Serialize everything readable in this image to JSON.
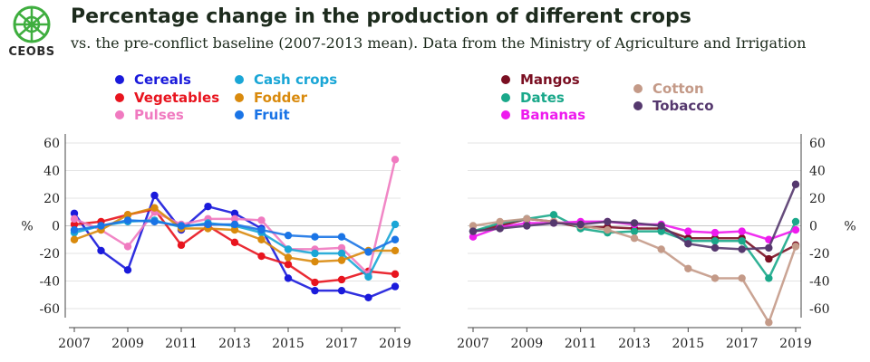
{
  "header": {
    "logo_text": "CEOBS",
    "title": "Percentage change in the production of different crops",
    "subtitle": "vs. the pre-conflict baseline (2007-2013 mean). Data from the Ministry of Agriculture and Irrigation"
  },
  "chart_data": [
    {
      "type": "line",
      "ylabel": "%",
      "ylim": [
        -70,
        70
      ],
      "yticks": [
        60,
        40,
        20,
        0,
        -20,
        -40,
        -60
      ],
      "xlim": [
        2007,
        2019
      ],
      "xticks": [
        2007,
        2009,
        2011,
        2013,
        2015,
        2017,
        2019
      ],
      "x": [
        2007,
        2008,
        2009,
        2010,
        2011,
        2012,
        2013,
        2014,
        2015,
        2016,
        2017,
        2018,
        2019
      ],
      "grid": "horizontal",
      "legend": "top",
      "series": [
        {
          "name": "Cereals",
          "color": "#1a1adb",
          "values": [
            9,
            -18,
            -32,
            22,
            -3,
            14,
            9,
            -2,
            -38,
            -47,
            -47,
            -52,
            -44
          ]
        },
        {
          "name": "Vegetables",
          "color": "#e8141e",
          "values": [
            1,
            3,
            8,
            12,
            -14,
            0,
            -12,
            -22,
            -28,
            -41,
            -39,
            -33,
            -35
          ]
        },
        {
          "name": "Pulses",
          "color": "#f07ac0",
          "values": [
            5,
            -3,
            -15,
            10,
            1,
            5,
            5,
            4,
            -17,
            -17,
            -16,
            -35,
            48
          ]
        },
        {
          "name": "Cash crops",
          "color": "#1aa6d6",
          "values": [
            -5,
            0,
            3,
            4,
            -1,
            2,
            0,
            -5,
            -17,
            -20,
            -20,
            -37,
            1
          ]
        },
        {
          "name": "Fodder",
          "color": "#d98a0d",
          "values": [
            -10,
            -3,
            8,
            13,
            -2,
            -2,
            -3,
            -10,
            -23,
            -26,
            -25,
            -18,
            -18
          ]
        },
        {
          "name": "Fruit",
          "color": "#1a74e6",
          "values": [
            -3,
            0,
            4,
            3,
            0,
            1,
            1,
            -3,
            -7,
            -8,
            -8,
            -19,
            -10
          ]
        }
      ]
    },
    {
      "type": "line",
      "ylabel": "%",
      "ylim": [
        -70,
        70
      ],
      "yticks": [
        60,
        40,
        20,
        0,
        -20,
        -40,
        -60
      ],
      "xlim": [
        2007,
        2019
      ],
      "xticks": [
        2007,
        2009,
        2011,
        2013,
        2015,
        2017,
        2019
      ],
      "x": [
        2007,
        2008,
        2009,
        2010,
        2011,
        2012,
        2013,
        2014,
        2015,
        2016,
        2017,
        2018,
        2019
      ],
      "grid": "horizontal",
      "legend": "top",
      "series": [
        {
          "name": "Mangos",
          "color": "#7a0f22",
          "values": [
            -4,
            0,
            5,
            3,
            -1,
            -1,
            -2,
            -2,
            -9,
            -9,
            -9,
            -24,
            -14
          ]
        },
        {
          "name": "Dates",
          "color": "#1aa88a",
          "values": [
            -4,
            2,
            5,
            8,
            -2,
            -5,
            -4,
            -4,
            -11,
            -11,
            -11,
            -38,
            3
          ]
        },
        {
          "name": "Bananas",
          "color": "#ee1aee",
          "values": [
            -8,
            -1,
            2,
            2,
            3,
            3,
            1,
            1,
            -4,
            -5,
            -4,
            -10,
            -3
          ]
        },
        {
          "name": "Cotton",
          "color": "#c49a88",
          "values": [
            0,
            3,
            5,
            3,
            0,
            -3,
            -9,
            -17,
            -31,
            -38,
            -38,
            -70,
            -15
          ]
        },
        {
          "name": "Tobacco",
          "color": "#55386e",
          "values": [
            -4,
            -2,
            0,
            2,
            1,
            3,
            2,
            0,
            -13,
            -16,
            -17,
            -16,
            30
          ]
        }
      ]
    }
  ]
}
